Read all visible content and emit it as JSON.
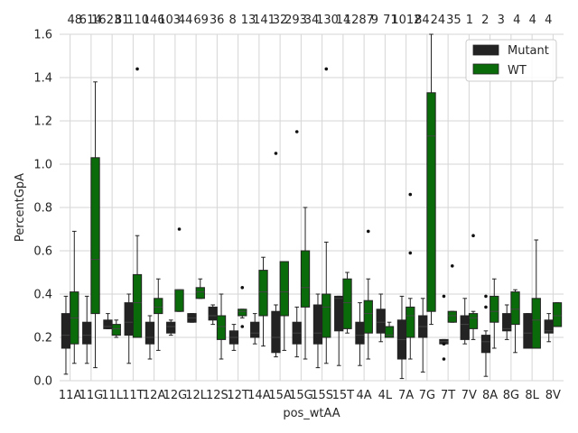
{
  "chart_data": {
    "type": "box",
    "xlabel": "pos_wtAA",
    "ylabel": "PercentGpA",
    "ylim": [
      0.0,
      1.6
    ],
    "yticks": [
      "0.0",
      "0.2",
      "0.4",
      "0.6",
      "0.8",
      "1.0",
      "1.2",
      "1.4",
      "1.6"
    ],
    "grid": true,
    "legend_position": "top-right",
    "categories": [
      "11A",
      "11G",
      "11L",
      "11T",
      "12A",
      "12G",
      "12L",
      "12S",
      "12T",
      "14A",
      "15A",
      "15G",
      "15S",
      "15T",
      "4A",
      "4L",
      "7A",
      "7G",
      "7T",
      "7V",
      "8A",
      "8G",
      "8L",
      "8V"
    ],
    "top_labels": [
      "48",
      "614",
      "1623",
      "81",
      "110",
      "146",
      "103",
      "44",
      "69",
      "36",
      "8",
      "13",
      "141",
      "32",
      "293",
      "34",
      "130",
      "14",
      "1287",
      "9",
      "71",
      "1012",
      "84",
      "24",
      "35",
      "1",
      "2",
      "3",
      "4",
      "4",
      "4"
    ],
    "series": [
      {
        "name": "Mutant",
        "color": "#232323",
        "boxes": [
          {
            "q1": 0.15,
            "median": 0.21,
            "q3": 0.31,
            "whislo": 0.03,
            "whishi": 0.39,
            "fliers": []
          },
          {
            "q1": 0.17,
            "median": 0.21,
            "q3": 0.27,
            "whislo": 0.08,
            "whishi": 0.39,
            "fliers": []
          },
          {
            "q1": 0.24,
            "median": 0.25,
            "q3": 0.28,
            "whislo": 0.24,
            "whishi": 0.31,
            "fliers": []
          },
          {
            "q1": 0.21,
            "median": 0.27,
            "q3": 0.36,
            "whislo": 0.08,
            "whishi": 0.4,
            "fliers": []
          },
          {
            "q1": 0.17,
            "median": 0.2,
            "q3": 0.27,
            "whislo": 0.1,
            "whishi": 0.3,
            "fliers": []
          },
          {
            "q1": 0.22,
            "median": 0.25,
            "q3": 0.27,
            "whislo": 0.21,
            "whishi": 0.28,
            "fliers": []
          },
          {
            "q1": 0.27,
            "median": 0.29,
            "q3": 0.31,
            "whislo": 0.27,
            "whishi": 0.31,
            "fliers": []
          },
          {
            "q1": 0.28,
            "median": 0.3,
            "q3": 0.34,
            "whislo": 0.26,
            "whishi": 0.35,
            "fliers": []
          },
          {
            "q1": 0.17,
            "median": 0.2,
            "q3": 0.23,
            "whislo": 0.14,
            "whishi": 0.26,
            "fliers": []
          },
          {
            "q1": 0.2,
            "median": 0.22,
            "q3": 0.27,
            "whislo": 0.17,
            "whishi": 0.31,
            "fliers": []
          },
          {
            "q1": 0.13,
            "median": 0.2,
            "q3": 0.32,
            "whislo": 0.11,
            "whishi": 0.35,
            "fliers": [
              1.05
            ]
          },
          {
            "q1": 0.17,
            "median": 0.22,
            "q3": 0.27,
            "whislo": 0.11,
            "whishi": 0.34,
            "fliers": [
              1.15
            ]
          },
          {
            "q1": 0.17,
            "median": 0.22,
            "q3": 0.35,
            "whislo": 0.06,
            "whishi": 0.4,
            "fliers": []
          },
          {
            "q1": 0.23,
            "median": 0.38,
            "q3": 0.39,
            "whislo": 0.07,
            "whishi": 0.39,
            "fliers": []
          },
          {
            "q1": 0.17,
            "median": 0.21,
            "q3": 0.27,
            "whislo": 0.07,
            "whishi": 0.36,
            "fliers": []
          },
          {
            "q1": 0.22,
            "median": 0.27,
            "q3": 0.33,
            "whislo": 0.18,
            "whishi": 0.4,
            "fliers": []
          },
          {
            "q1": 0.1,
            "median": 0.19,
            "q3": 0.28,
            "whislo": 0.01,
            "whishi": 0.39,
            "fliers": []
          },
          {
            "q1": 0.2,
            "median": 0.25,
            "q3": 0.3,
            "whislo": 0.04,
            "whishi": 0.38,
            "fliers": []
          },
          {
            "q1": 0.17,
            "median": 0.18,
            "q3": 0.19,
            "whislo": 0.17,
            "whishi": 0.19,
            "fliers": [
              0.39,
              0.1,
              0.17
            ]
          },
          {
            "q1": 0.19,
            "median": 0.26,
            "q3": 0.3,
            "whislo": 0.17,
            "whishi": 0.38,
            "fliers": []
          },
          {
            "q1": 0.13,
            "median": 0.18,
            "q3": 0.21,
            "whislo": 0.02,
            "whishi": 0.23,
            "fliers": [
              0.34,
              0.39
            ]
          },
          {
            "q1": 0.23,
            "median": 0.24,
            "q3": 0.31,
            "whislo": 0.19,
            "whishi": 0.35,
            "fliers": []
          },
          {
            "q1": 0.15,
            "median": 0.22,
            "q3": 0.31,
            "whislo": 0.15,
            "whishi": 0.31,
            "fliers": []
          },
          {
            "q1": 0.22,
            "median": 0.23,
            "q3": 0.28,
            "whislo": 0.18,
            "whishi": 0.31,
            "fliers": []
          }
        ]
      },
      {
        "name": "WT",
        "color": "#0a6b0a",
        "boxes": [
          {
            "q1": 0.17,
            "median": 0.29,
            "q3": 0.41,
            "whislo": 0.08,
            "whishi": 0.69,
            "fliers": []
          },
          {
            "q1": 0.31,
            "median": 0.56,
            "q3": 1.03,
            "whislo": 0.06,
            "whishi": 1.38,
            "fliers": []
          },
          {
            "q1": 0.21,
            "median": 0.24,
            "q3": 0.26,
            "whislo": 0.2,
            "whishi": 0.28,
            "fliers": []
          },
          {
            "q1": 0.2,
            "median": 0.36,
            "q3": 0.49,
            "whislo": 0.2,
            "whishi": 0.67,
            "fliers": [
              1.44
            ]
          },
          {
            "q1": 0.31,
            "median": 0.34,
            "q3": 0.38,
            "whislo": 0.14,
            "whishi": 0.47,
            "fliers": []
          },
          {
            "q1": 0.32,
            "median": 0.42,
            "q3": 0.42,
            "whislo": 0.32,
            "whishi": 0.42,
            "fliers": [
              0.7
            ]
          },
          {
            "q1": 0.38,
            "median": 0.41,
            "q3": 0.43,
            "whislo": 0.38,
            "whishi": 0.47,
            "fliers": []
          },
          {
            "q1": 0.19,
            "median": 0.25,
            "q3": 0.3,
            "whislo": 0.1,
            "whishi": 0.4,
            "fliers": []
          },
          {
            "q1": 0.3,
            "median": 0.32,
            "q3": 0.33,
            "whislo": 0.29,
            "whishi": 0.33,
            "fliers": [
              0.43,
              0.25
            ]
          },
          {
            "q1": 0.3,
            "median": 0.41,
            "q3": 0.51,
            "whislo": 0.16,
            "whishi": 0.57,
            "fliers": []
          },
          {
            "q1": 0.3,
            "median": 0.41,
            "q3": 0.55,
            "whislo": 0.14,
            "whishi": 0.55,
            "fliers": []
          },
          {
            "q1": 0.34,
            "median": 0.43,
            "q3": 0.6,
            "whislo": 0.1,
            "whishi": 0.8,
            "fliers": []
          },
          {
            "q1": 0.2,
            "median": 0.34,
            "q3": 0.4,
            "whislo": 0.08,
            "whishi": 0.64,
            "fliers": [
              1.44
            ]
          },
          {
            "q1": 0.24,
            "median": 0.36,
            "q3": 0.47,
            "whislo": 0.22,
            "whishi": 0.5,
            "fliers": []
          },
          {
            "q1": 0.22,
            "median": 0.31,
            "q3": 0.37,
            "whislo": 0.1,
            "whishi": 0.47,
            "fliers": [
              0.69
            ]
          },
          {
            "q1": 0.2,
            "median": 0.21,
            "q3": 0.25,
            "whislo": 0.2,
            "whishi": 0.27,
            "fliers": []
          },
          {
            "q1": 0.2,
            "median": 0.3,
            "q3": 0.34,
            "whislo": 0.1,
            "whishi": 0.38,
            "fliers": [
              0.86,
              0.59
            ]
          },
          {
            "q1": 0.32,
            "median": 1.13,
            "q3": 1.33,
            "whislo": 0.26,
            "whishi": 1.6,
            "fliers": []
          },
          {
            "q1": 0.27,
            "median": 0.3,
            "q3": 0.32,
            "whislo": 0.27,
            "whishi": 0.32,
            "fliers": [
              0.53
            ]
          },
          {
            "q1": 0.24,
            "median": 0.29,
            "q3": 0.31,
            "whislo": 0.19,
            "whishi": 0.32,
            "fliers": [
              0.67
            ]
          },
          {
            "q1": 0.27,
            "median": 0.32,
            "q3": 0.39,
            "whislo": 0.15,
            "whishi": 0.47,
            "fliers": []
          },
          {
            "q1": 0.26,
            "median": 0.33,
            "q3": 0.41,
            "whislo": 0.13,
            "whishi": 0.42,
            "fliers": []
          },
          {
            "q1": 0.15,
            "median": 0.28,
            "q3": 0.38,
            "whislo": 0.15,
            "whishi": 0.65,
            "fliers": []
          },
          {
            "q1": 0.25,
            "median": 0.3,
            "q3": 0.36,
            "whislo": 0.25,
            "whishi": 0.36,
            "fliers": []
          }
        ]
      }
    ]
  }
}
